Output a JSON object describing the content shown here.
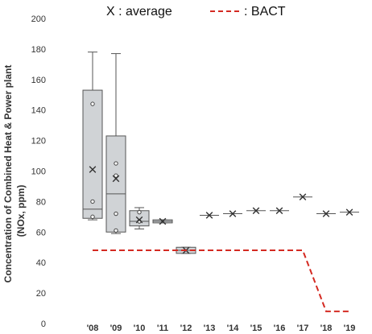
{
  "chart_data": {
    "type": "box",
    "categories": [
      "'08",
      "'09",
      "'10",
      "'11",
      "'12",
      "'13",
      "'14",
      "'15",
      "'16",
      "'17",
      "'18",
      "'19"
    ],
    "ylabel_line1": "Concentration of Combined Heat & Power plant",
    "ylabel_line2": "(NOx, ppm)",
    "ylim": [
      0,
      200
    ],
    "yticks": [
      0,
      20,
      40,
      60,
      80,
      100,
      120,
      140,
      160,
      180,
      200
    ],
    "ytick_labels": [
      "0",
      "20",
      "40",
      "60",
      "80",
      "100",
      "120",
      "140",
      "160",
      "180",
      "200"
    ],
    "grid": false,
    "legend": {
      "placement": "top",
      "average_label": "X : average",
      "bact_label": ": BACT"
    },
    "boxes": [
      {
        "category": "'08",
        "min": 68,
        "q1": 69,
        "median": 75,
        "q3": 153,
        "max": 178,
        "mean": 101,
        "points": [
          70,
          80,
          144
        ]
      },
      {
        "category": "'09",
        "min": 59,
        "q1": 60,
        "median": 85,
        "q3": 123,
        "max": 177,
        "mean": 95,
        "points": [
          61,
          72,
          97,
          105
        ]
      },
      {
        "category": "'10",
        "min": 62,
        "q1": 64,
        "median": 67,
        "q3": 74,
        "max": 76,
        "mean": 68,
        "points": [
          67,
          73
        ]
      },
      {
        "category": "'11",
        "min": 66,
        "q1": 66,
        "median": 67,
        "q3": 68,
        "max": 68,
        "mean": 67,
        "points": []
      },
      {
        "category": "'12",
        "min": 46,
        "q1": 46,
        "median": 48,
        "q3": 50,
        "max": 50,
        "mean": 48,
        "points": []
      }
    ],
    "averages_only": [
      {
        "category": "'13",
        "mean": 71
      },
      {
        "category": "'14",
        "mean": 72
      },
      {
        "category": "'15",
        "mean": 74
      },
      {
        "category": "'16",
        "mean": 74
      },
      {
        "category": "'17",
        "mean": 83
      },
      {
        "category": "'18",
        "mean": 72
      },
      {
        "category": "'19",
        "mean": 73
      }
    ],
    "bact": {
      "name": "BACT",
      "points": [
        {
          "x": 0,
          "y": 48
        },
        {
          "x": 9,
          "y": 48
        },
        {
          "x": 10,
          "y": 8
        },
        {
          "x": 11,
          "y": 8
        }
      ]
    },
    "colors": {
      "box_fill": "#d0d3d6",
      "box_stroke": "#555555",
      "bact": "#d42a22",
      "mean_marker": "#333333"
    }
  }
}
